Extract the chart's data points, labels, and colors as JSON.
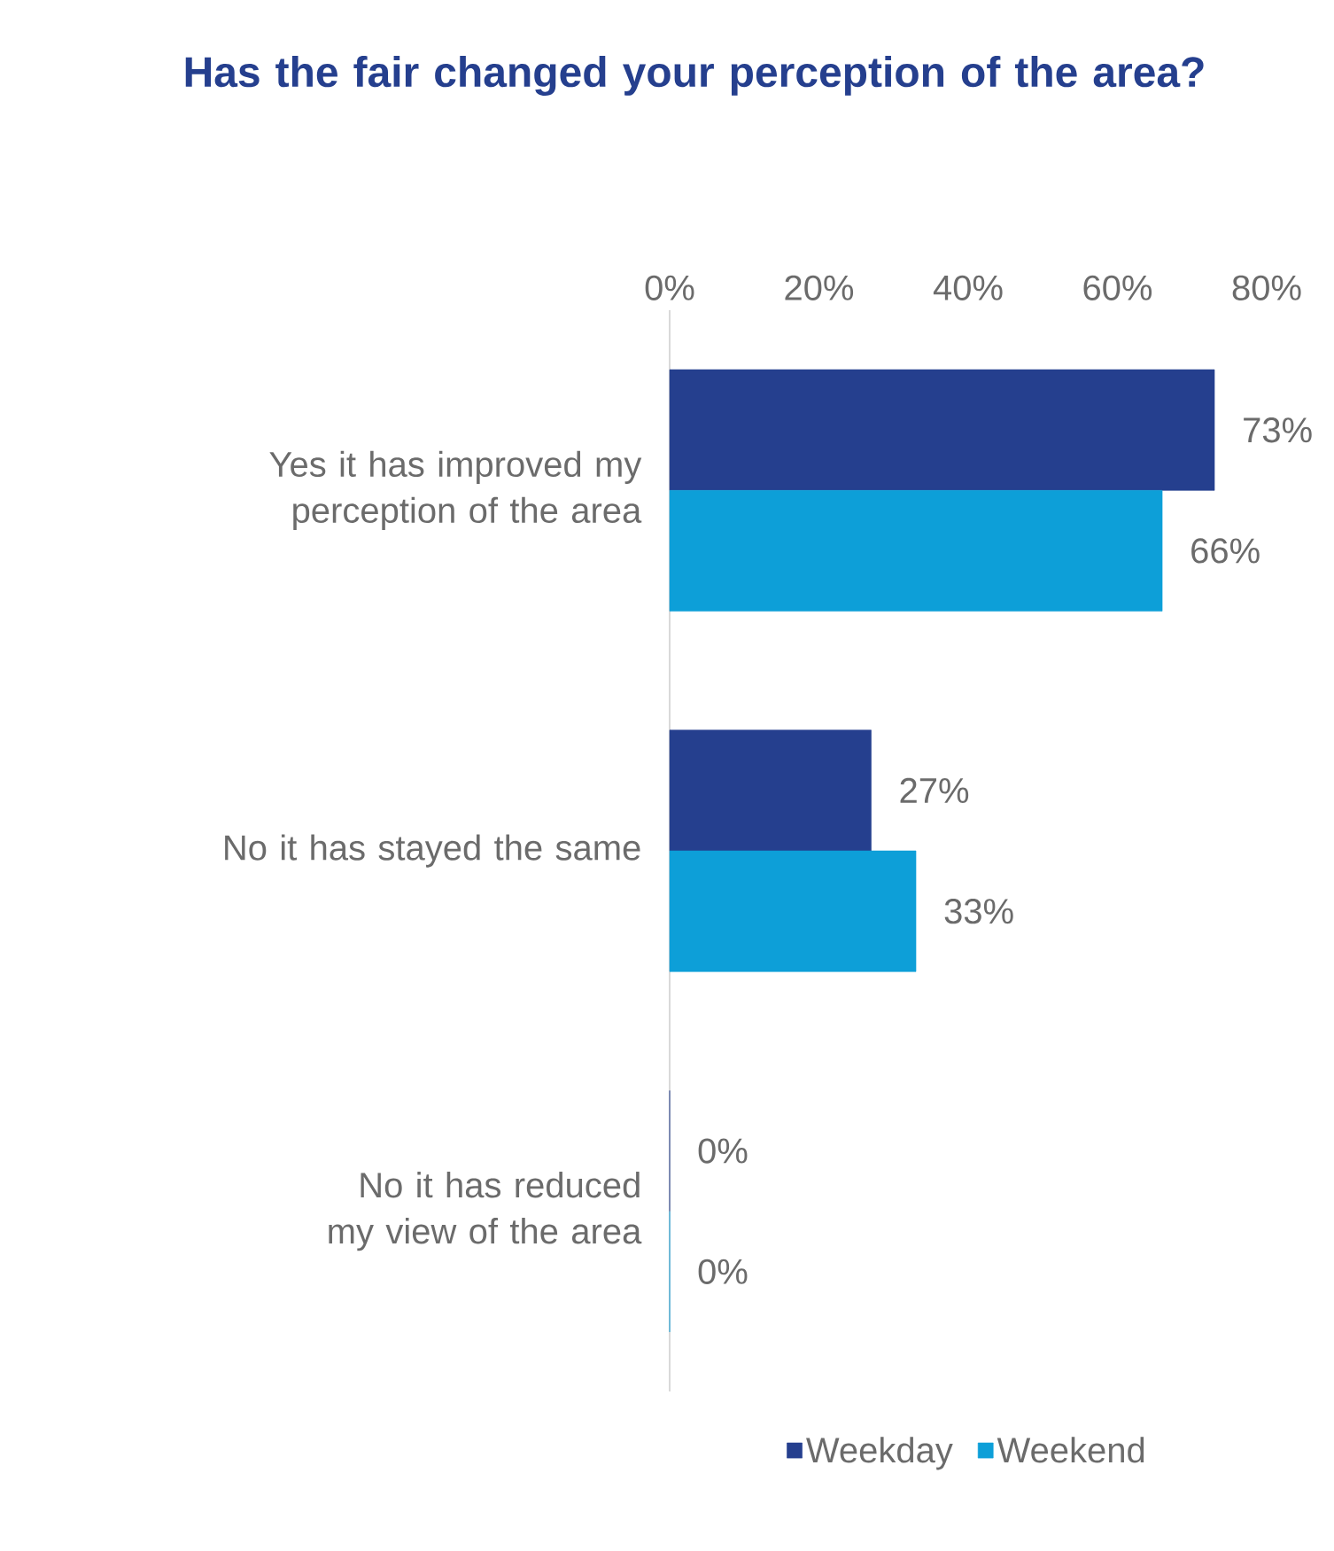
{
  "chart_data": {
    "type": "bar",
    "orientation": "horizontal",
    "title": "Has the fair changed your perception of the area?",
    "categories": [
      "Yes it has improved my perception of the area",
      "No it has stayed the same",
      "No it has reduced my view of the area"
    ],
    "series": [
      {
        "name": "Weekday",
        "color": "#253f8e",
        "values": [
          73,
          27,
          0
        ],
        "value_labels": [
          "73%",
          "27%",
          "0%"
        ]
      },
      {
        "name": "Weekend",
        "color": "#0d9fd8",
        "values": [
          66,
          33,
          0
        ],
        "value_labels": [
          "66%",
          "33%",
          "0%"
        ]
      }
    ],
    "xlim": [
      0,
      80
    ],
    "xticks": [
      {
        "value": 0,
        "label": "0%"
      },
      {
        "value": 20,
        "label": "20%"
      },
      {
        "value": 40,
        "label": "40%"
      },
      {
        "value": 60,
        "label": "60%"
      },
      {
        "value": 80,
        "label": "80%"
      }
    ],
    "legend": "bottom",
    "grid": false
  }
}
